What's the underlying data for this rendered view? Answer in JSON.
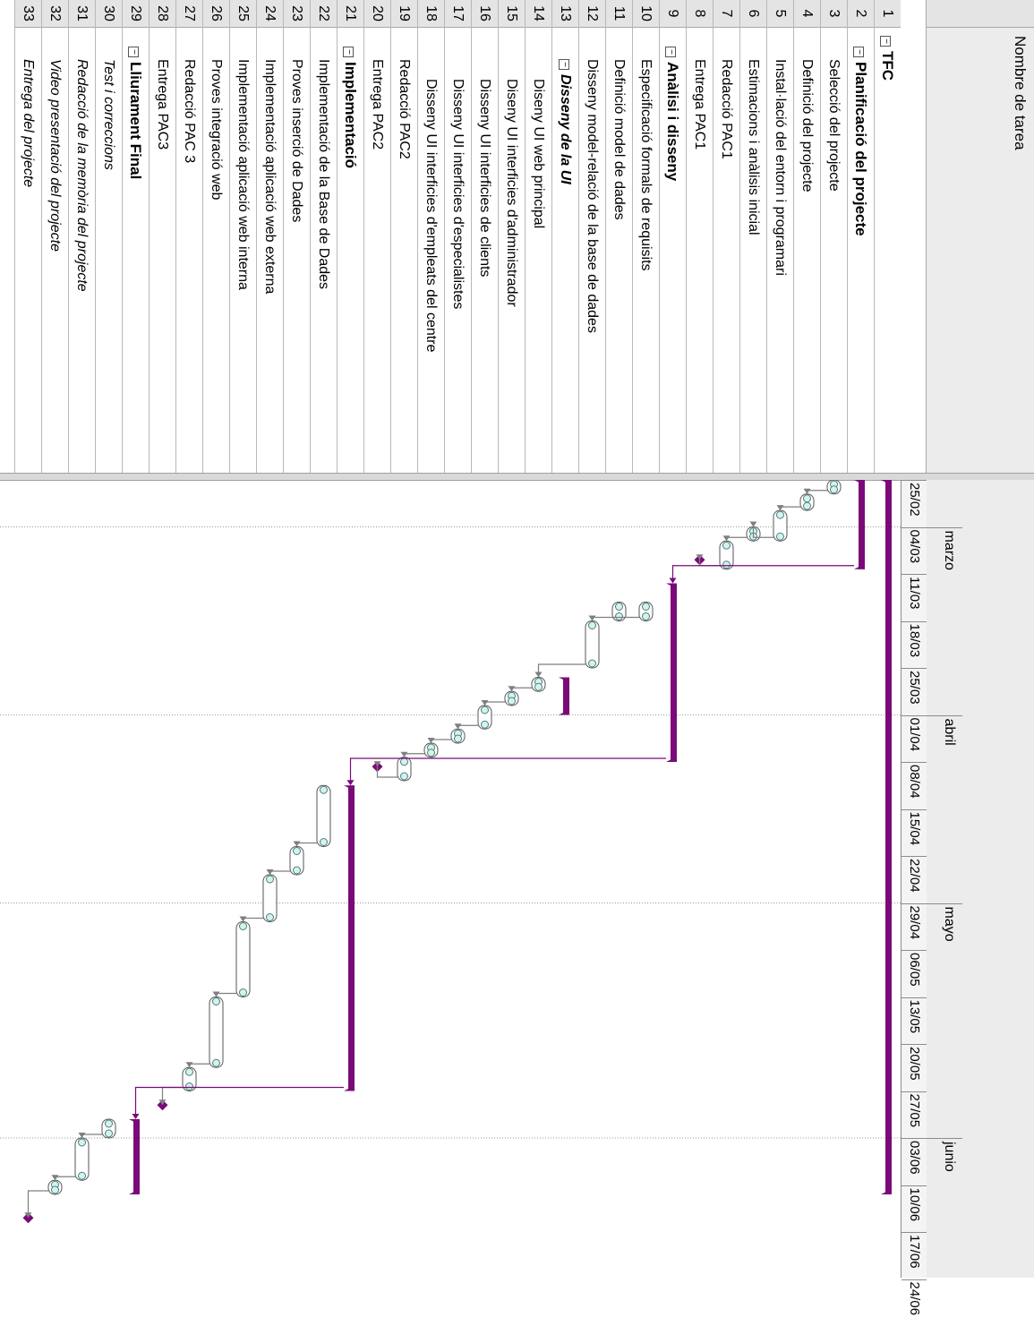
{
  "header": {
    "task_name": "Nombre de tarea"
  },
  "colors": {
    "summary": "#7a0a78",
    "task_border": "#555555",
    "milestone": "#7a0a78",
    "link": "#7f7f7f"
  },
  "timescale": {
    "months": [
      {
        "label": "marzo",
        "week_index": 1
      },
      {
        "label": "abril",
        "week_index": 5
      },
      {
        "label": "mayo",
        "week_index": 9
      },
      {
        "label": "junio",
        "week_index": 14
      }
    ],
    "weeks": [
      "25/02",
      "04/03",
      "11/03",
      "18/03",
      "25/03",
      "01/04",
      "08/04",
      "15/04",
      "22/04",
      "29/04",
      "06/05",
      "13/05",
      "20/05",
      "27/05",
      "03/06",
      "10/06",
      "17/06",
      "24/06"
    ]
  },
  "tasks": [
    {
      "id": "1",
      "name": "TFC",
      "level": 0,
      "style": "bold",
      "collapsed": true
    },
    {
      "id": "2",
      "name": "Planificació del projecte",
      "level": 1,
      "style": "bold",
      "collapsed": true
    },
    {
      "id": "3",
      "name": "Selecció del projecte",
      "level": 2,
      "style": "normal"
    },
    {
      "id": "4",
      "name": "Definició del projecte",
      "level": 2,
      "style": "normal"
    },
    {
      "id": "5",
      "name": "Instal·lació del entorn i programari",
      "level": 2,
      "style": "normal"
    },
    {
      "id": "6",
      "name": "Estimacions i anàlisis inicial",
      "level": 2,
      "style": "normal"
    },
    {
      "id": "7",
      "name": "Redacció PAC1",
      "level": 2,
      "style": "normal"
    },
    {
      "id": "8",
      "name": "Entrega PAC1",
      "level": 2,
      "style": "normal"
    },
    {
      "id": "9",
      "name": "Anàlisi i disseny",
      "level": 1,
      "style": "bold",
      "collapsed": true
    },
    {
      "id": "10",
      "name": "Especificació formals de requisits",
      "level": 2,
      "style": "normal"
    },
    {
      "id": "11",
      "name": "Definició model de dades",
      "level": 2,
      "style": "normal"
    },
    {
      "id": "12",
      "name": "Disseny model-relació de la base de dades",
      "level": 2,
      "style": "normal"
    },
    {
      "id": "13",
      "name": "Disseny de la UI",
      "level": 2,
      "style": "boldital",
      "collapsed": true
    },
    {
      "id": "14",
      "name": "Diseny UI web principal",
      "level": 3,
      "style": "normal"
    },
    {
      "id": "15",
      "name": "Diseny UI interficies d'administrador",
      "level": 3,
      "style": "normal"
    },
    {
      "id": "16",
      "name": "Disseny UI interficies de clients",
      "level": 3,
      "style": "normal"
    },
    {
      "id": "17",
      "name": "Disseny UI interficies d'especialistes",
      "level": 3,
      "style": "normal"
    },
    {
      "id": "18",
      "name": "Disseny UI interficies d'empleats del centre",
      "level": 3,
      "style": "normal"
    },
    {
      "id": "19",
      "name": "Redacció PAC2",
      "level": 2,
      "style": "normal"
    },
    {
      "id": "20",
      "name": "Entrega PAC2",
      "level": 2,
      "style": "normal"
    },
    {
      "id": "21",
      "name": "Implementació",
      "level": 1,
      "style": "bold",
      "collapsed": true
    },
    {
      "id": "22",
      "name": "Implementació de la Base de Dades",
      "level": 2,
      "style": "normal"
    },
    {
      "id": "23",
      "name": "Proves inserció de Dades",
      "level": 2,
      "style": "normal"
    },
    {
      "id": "24",
      "name": "Implementació aplicació web externa",
      "level": 2,
      "style": "normal"
    },
    {
      "id": "25",
      "name": "Implementació aplicació web interna",
      "level": 2,
      "style": "normal"
    },
    {
      "id": "26",
      "name": "Proves integració web",
      "level": 2,
      "style": "normal"
    },
    {
      "id": "27",
      "name": "Redacció PAC 3",
      "level": 2,
      "style": "normal"
    },
    {
      "id": "28",
      "name": "Entrega PAC3",
      "level": 2,
      "style": "normal"
    },
    {
      "id": "29",
      "name": "Lliurament Final",
      "level": 1,
      "style": "bold",
      "collapsed": true
    },
    {
      "id": "30",
      "name": "Test i correccions",
      "level": 2,
      "style": "italic"
    },
    {
      "id": "31",
      "name": "Redacció de la memòria del projecte",
      "level": 2,
      "style": "italic"
    },
    {
      "id": "32",
      "name": "Video presentació del projecte",
      "level": 2,
      "style": "italic"
    },
    {
      "id": "33",
      "name": "Entrega del projecte",
      "level": 2,
      "style": "italic"
    }
  ],
  "chart_data": {
    "type": "gantt",
    "note_units": "weeks from 25/02",
    "bars": [
      {
        "row": 1,
        "kind": "summary",
        "start": 0.0,
        "end": 15.2
      },
      {
        "row": 2,
        "kind": "summary",
        "start": 0.0,
        "end": 1.9
      },
      {
        "row": 3,
        "kind": "task",
        "start": 0.0,
        "end": 0.3
      },
      {
        "row": 4,
        "kind": "task",
        "start": 0.3,
        "end": 0.65
      },
      {
        "row": 5,
        "kind": "task",
        "start": 0.65,
        "end": 1.3
      },
      {
        "row": 6,
        "kind": "task",
        "start": 1.0,
        "end": 1.3
      },
      {
        "row": 7,
        "kind": "task",
        "start": 1.3,
        "end": 1.9
      },
      {
        "row": 8,
        "kind": "milestone",
        "start": 1.7,
        "end": 1.7
      },
      {
        "row": 9,
        "kind": "summary",
        "start": 2.2,
        "end": 6.0
      },
      {
        "row": 10,
        "kind": "task",
        "start": 2.6,
        "end": 3.0
      },
      {
        "row": 11,
        "kind": "task",
        "start": 2.6,
        "end": 3.0
      },
      {
        "row": 12,
        "kind": "task",
        "start": 3.0,
        "end": 4.0
      },
      {
        "row": 13,
        "kind": "summary",
        "start": 4.2,
        "end": 5.0
      },
      {
        "row": 14,
        "kind": "task",
        "start": 4.2,
        "end": 4.5
      },
      {
        "row": 15,
        "kind": "task",
        "start": 4.5,
        "end": 4.8
      },
      {
        "row": 16,
        "kind": "task",
        "start": 4.8,
        "end": 5.3
      },
      {
        "row": 17,
        "kind": "task",
        "start": 5.3,
        "end": 5.6
      },
      {
        "row": 18,
        "kind": "task",
        "start": 5.6,
        "end": 5.9
      },
      {
        "row": 19,
        "kind": "task",
        "start": 5.9,
        "end": 6.4
      },
      {
        "row": 20,
        "kind": "milestone",
        "start": 6.1,
        "end": 6.1
      },
      {
        "row": 21,
        "kind": "summary",
        "start": 6.5,
        "end": 13.0
      },
      {
        "row": 22,
        "kind": "task",
        "start": 6.5,
        "end": 7.8
      },
      {
        "row": 23,
        "kind": "task",
        "start": 7.8,
        "end": 8.4
      },
      {
        "row": 24,
        "kind": "task",
        "start": 8.4,
        "end": 9.4
      },
      {
        "row": 25,
        "kind": "task",
        "start": 9.4,
        "end": 11.0
      },
      {
        "row": 26,
        "kind": "task",
        "start": 11.0,
        "end": 12.5
      },
      {
        "row": 27,
        "kind": "task",
        "start": 12.5,
        "end": 13.0
      },
      {
        "row": 28,
        "kind": "milestone",
        "start": 13.3,
        "end": 13.3
      },
      {
        "row": 29,
        "kind": "summary",
        "start": 13.6,
        "end": 15.2
      },
      {
        "row": 30,
        "kind": "task",
        "start": 13.6,
        "end": 14.0
      },
      {
        "row": 31,
        "kind": "task",
        "start": 14.0,
        "end": 14.9
      },
      {
        "row": 32,
        "kind": "task",
        "start": 14.9,
        "end": 15.2
      },
      {
        "row": 33,
        "kind": "milestone",
        "start": 15.7,
        "end": 15.7
      }
    ]
  }
}
